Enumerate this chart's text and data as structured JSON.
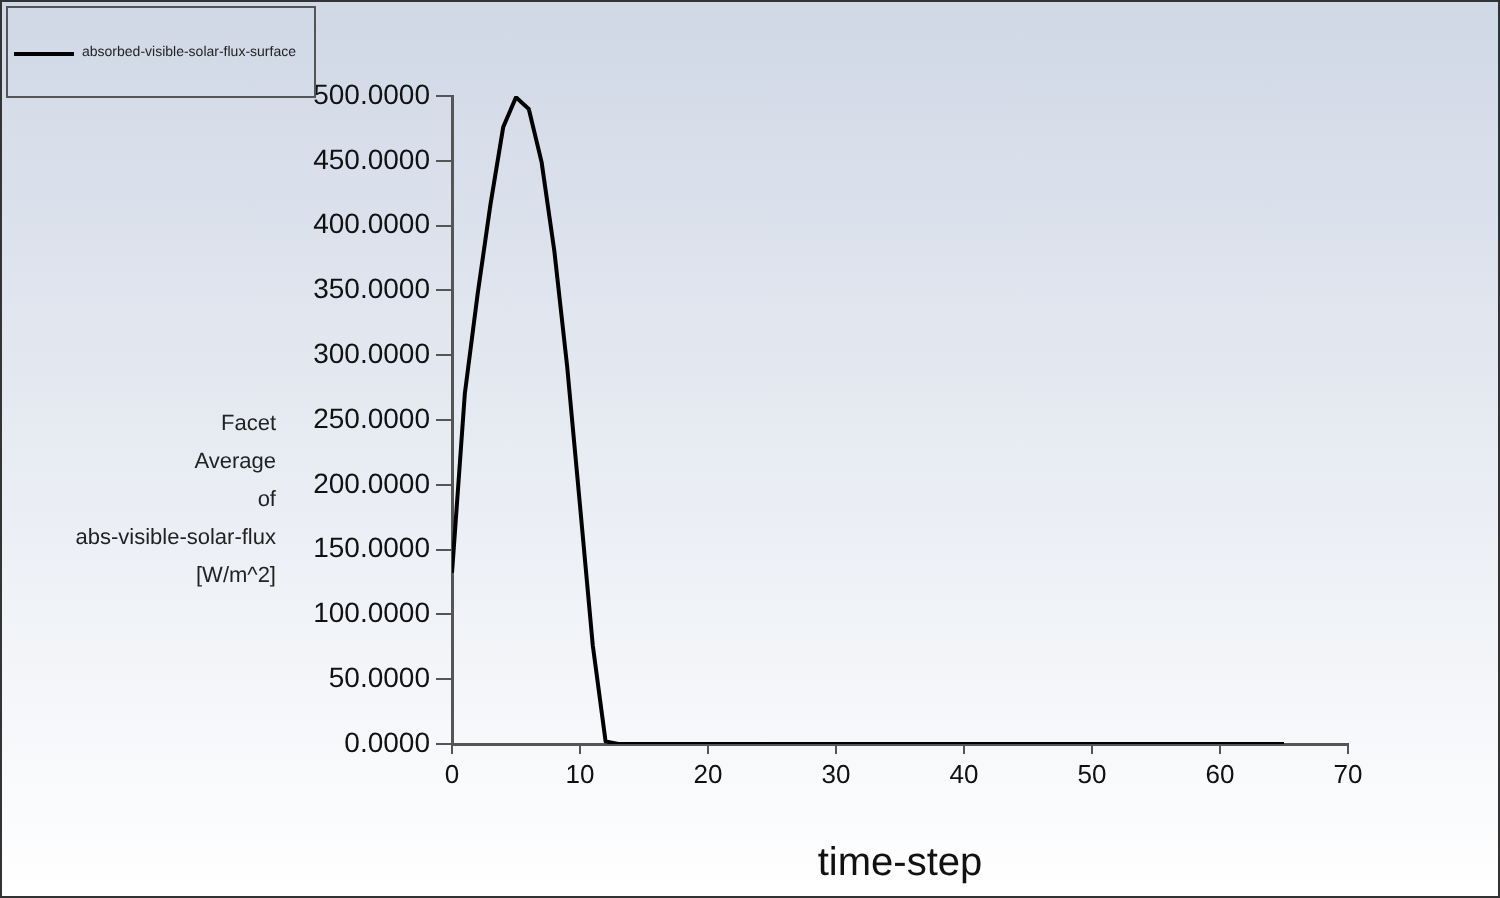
{
  "chart_data": {
    "type": "line",
    "xlabel": "time-step",
    "ylabel": "Facet\nAverage\nof\nabs-visible-solar-flux\n[W/m^2]",
    "x": [
      0,
      1,
      2,
      3,
      4,
      5,
      6,
      7,
      8,
      9,
      10,
      11,
      12,
      13,
      20,
      30,
      40,
      50,
      60,
      65
    ],
    "series": [
      {
        "name": "absorbed-visible-solar-flux-surface",
        "color": "#000000",
        "values": [
          132,
          270,
          347,
          416,
          476,
          499,
          490,
          449,
          380,
          291,
          184,
          76,
          2,
          0,
          0,
          0,
          0,
          0,
          0,
          0
        ]
      }
    ],
    "xlim": [
      0,
      70
    ],
    "xticks": [
      0,
      10,
      20,
      30,
      40,
      50,
      60,
      70
    ],
    "ylim": [
      0,
      500
    ],
    "yticks": [
      {
        "value": 0,
        "label": "0.0000"
      },
      {
        "value": 50,
        "label": "50.0000"
      },
      {
        "value": 100,
        "label": "100.0000"
      },
      {
        "value": 150,
        "label": "150.0000"
      },
      {
        "value": 200,
        "label": "200.0000"
      },
      {
        "value": 250,
        "label": "250.0000"
      },
      {
        "value": 300,
        "label": "300.0000"
      },
      {
        "value": 350,
        "label": "350.0000"
      },
      {
        "value": 400,
        "label": "400.0000"
      },
      {
        "value": 450,
        "label": "450.0000"
      },
      {
        "value": 500,
        "label": "500.0000"
      }
    ],
    "grid": false,
    "legend": "top left",
    "marker": "none",
    "line_style": "solid"
  }
}
